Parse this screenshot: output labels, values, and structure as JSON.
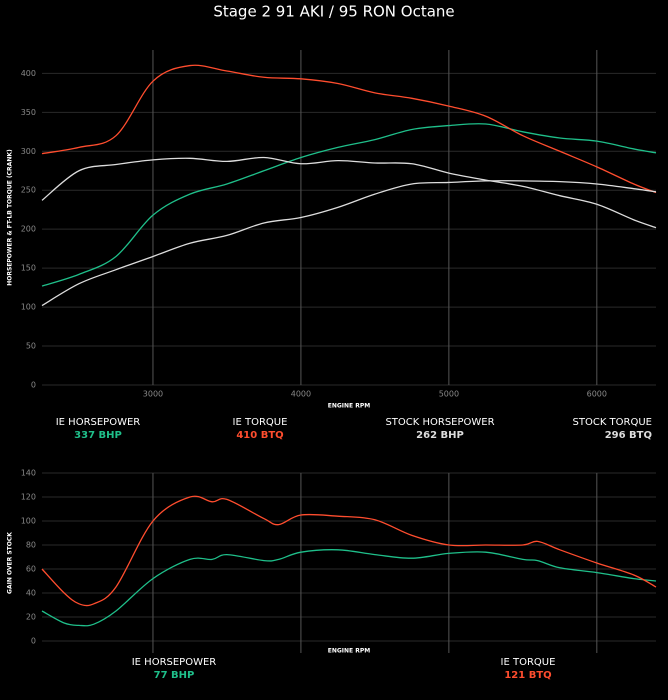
{
  "chart_data": [
    {
      "type": "line",
      "title": "Stage 2 91 AKI / 95 RON Octane",
      "x_label": "ENGINE RPM",
      "y_label": "HORSEPOWER & FT-LB TORQUE (CRANK)",
      "x": [
        2250,
        2500,
        2750,
        3000,
        3250,
        3500,
        3750,
        4000,
        4250,
        4500,
        4750,
        5000,
        5250,
        5500,
        5750,
        6000,
        6250,
        6400
      ],
      "series": [
        {
          "name": "IE HORSEPOWER",
          "summary": "337 BHP",
          "color": "#1fbf8a",
          "values": [
            127,
            142,
            165,
            218,
            245,
            258,
            275,
            292,
            305,
            315,
            328,
            333,
            335,
            325,
            317,
            313,
            303,
            298
          ]
        },
        {
          "name": "IE TORQUE",
          "summary": "410 BTQ",
          "color": "#ff4d2e",
          "values": [
            297,
            305,
            320,
            390,
            410,
            403,
            395,
            393,
            387,
            375,
            368,
            358,
            345,
            320,
            300,
            280,
            258,
            247
          ]
        },
        {
          "name": "STOCK HORSEPOWER",
          "summary": "262 BHP",
          "color": "#dddddd",
          "values": [
            102,
            130,
            148,
            165,
            182,
            192,
            208,
            215,
            228,
            245,
            258,
            260,
            262,
            262,
            261,
            258,
            252,
            248
          ]
        },
        {
          "name": "STOCK TORQUE",
          "summary": "296 BTQ",
          "color": "#dddddd",
          "values": [
            237,
            275,
            283,
            289,
            291,
            287,
            292,
            284,
            288,
            285,
            284,
            272,
            263,
            255,
            243,
            232,
            212,
            202
          ]
        }
      ],
      "xlim": [
        2250,
        6400
      ],
      "ylim": [
        0,
        430
      ],
      "xticks": [
        3000,
        4000,
        5000,
        6000
      ],
      "yticks": [
        0,
        50,
        100,
        150,
        200,
        250,
        300,
        350,
        400
      ],
      "show_xtick_labels": true,
      "grid": true
    },
    {
      "type": "line",
      "x_label": "ENGINE RPM",
      "y_label": "GAIN OVER STOCK",
      "x": [
        2250,
        2400,
        2500,
        2600,
        2750,
        3000,
        3250,
        3400,
        3500,
        3750,
        3850,
        4000,
        4250,
        4500,
        4750,
        5000,
        5250,
        5500,
        5600,
        5750,
        6000,
        6250,
        6400
      ],
      "series": [
        {
          "name": "IE HORSEPOWER",
          "summary": "77 BHP",
          "color": "#1fbf8a",
          "values": [
            25,
            15,
            13,
            14,
            25,
            52,
            68,
            68,
            72,
            67,
            68,
            74,
            76,
            72,
            69,
            73,
            74,
            68,
            67,
            61,
            57,
            52,
            50
          ]
        },
        {
          "name": "IE TORQUE",
          "summary": "121 BTQ",
          "color": "#ff4d2e",
          "values": [
            60,
            40,
            31,
            31,
            45,
            100,
            120,
            116,
            118,
            102,
            97,
            105,
            104,
            101,
            88,
            80,
            80,
            80,
            83,
            76,
            65,
            55,
            45
          ]
        }
      ],
      "xlim": [
        2250,
        6400
      ],
      "ylim": [
        -10,
        140
      ],
      "xticks": [
        3000,
        4000,
        5000,
        6000
      ],
      "yticks": [
        0,
        20,
        40,
        60,
        80,
        100,
        120,
        140
      ],
      "show_xtick_labels": false,
      "grid": true
    }
  ]
}
